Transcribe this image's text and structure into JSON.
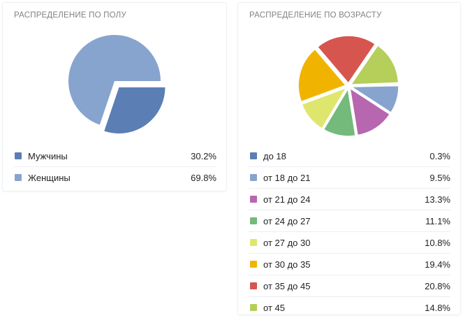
{
  "chart_data": [
    {
      "type": "pie",
      "title": "РАСПРЕДЕЛЕНИЕ ПО ПОЛУ",
      "legend_position": "bottom",
      "series": [
        {
          "label": "Мужчины",
          "value": 30.2,
          "value_text": "30.2%",
          "color": "#5b7fb4"
        },
        {
          "label": "Женщины",
          "value": 69.8,
          "value_text": "69.8%",
          "color": "#87a4cf"
        }
      ]
    },
    {
      "type": "pie",
      "title": "РАСПРЕДЕЛЕНИЕ ПО ВОЗРАСТУ",
      "legend_position": "bottom",
      "series": [
        {
          "label": "до 18",
          "value": 0.3,
          "value_text": "0.3%",
          "color": "#5b7fb4"
        },
        {
          "label": "от 18 до 21",
          "value": 9.5,
          "value_text": "9.5%",
          "color": "#87a4cf"
        },
        {
          "label": "от 21 до 24",
          "value": 13.3,
          "value_text": "13.3%",
          "color": "#b766b0"
        },
        {
          "label": "от 24 до 27",
          "value": 11.1,
          "value_text": "11.1%",
          "color": "#74ba7a"
        },
        {
          "label": "от 27 до 30",
          "value": 10.8,
          "value_text": "10.8%",
          "color": "#dfe66e"
        },
        {
          "label": "от 30 до 35",
          "value": 19.4,
          "value_text": "19.4%",
          "color": "#f0b400"
        },
        {
          "label": "от 35 до 45",
          "value": 20.8,
          "value_text": "20.8%",
          "color": "#d6564f"
        },
        {
          "label": "от 45",
          "value": 14.8,
          "value_text": "14.8%",
          "color": "#b6ce5a"
        }
      ]
    }
  ]
}
